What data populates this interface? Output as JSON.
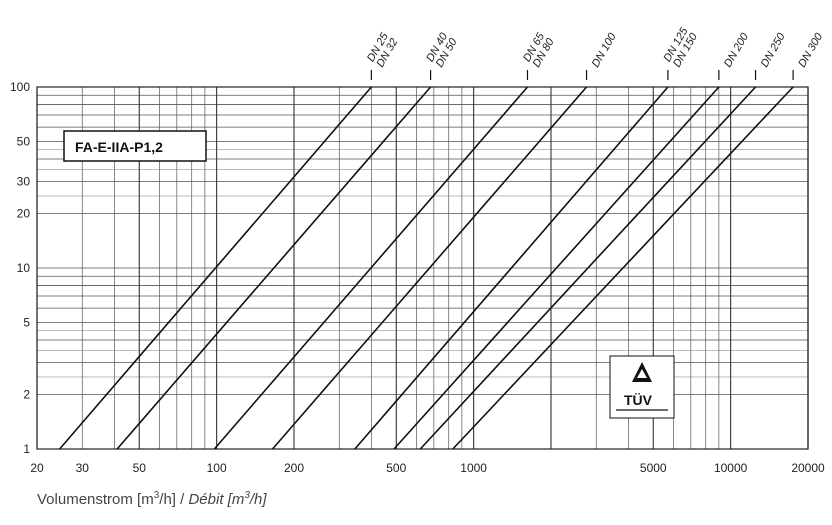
{
  "chart_data": {
    "type": "line",
    "xscale": "log",
    "yscale": "log",
    "xlim": [
      20,
      20000
    ],
    "ylim": [
      1,
      100
    ],
    "grid": true,
    "xticks": [
      "20",
      "30",
      "50",
      "100",
      "200",
      "500",
      "1000",
      "5000",
      "10000",
      "20000"
    ],
    "yticks": [
      "1",
      "2",
      "5",
      "10",
      "20",
      "30",
      "50",
      "100"
    ],
    "xlabel_parts": [
      "Volumenstrom [m",
      "3",
      "/h] /",
      "Débit [m",
      "3",
      "/h]"
    ],
    "device_label": "FA-E-IIA-P1,2",
    "certification": "TÜV",
    "series": [
      {
        "name": "DN 25 / DN 32",
        "x": [
          24.5,
          400
        ],
        "y": [
          1,
          100
        ]
      },
      {
        "name": "DN 40 / DN 50",
        "x": [
          41,
          680
        ],
        "y": [
          1,
          100
        ]
      },
      {
        "name": "DN 65 / DN 80",
        "x": [
          98,
          1620
        ],
        "y": [
          1,
          100
        ]
      },
      {
        "name": "DN 100",
        "x": [
          165,
          2750
        ],
        "y": [
          1,
          100
        ]
      },
      {
        "name": "DN 125 / DN 150",
        "x": [
          345,
          5700
        ],
        "y": [
          1,
          100
        ]
      },
      {
        "name": "DN 200",
        "x": [
          490,
          9000
        ],
        "y": [
          1,
          100
        ]
      },
      {
        "name": "DN 250",
        "x": [
          620,
          12500
        ],
        "y": [
          1,
          100
        ]
      },
      {
        "name": "DN 300",
        "x": [
          830,
          17500
        ],
        "y": [
          1,
          100
        ]
      }
    ],
    "dn_labels": [
      {
        "lines": [
          "DN 25",
          "DN 32"
        ],
        "x": 400
      },
      {
        "lines": [
          "DN 40",
          "DN 50"
        ],
        "x": 680
      },
      {
        "lines": [
          "DN 65",
          "DN 80"
        ],
        "x": 1620
      },
      {
        "lines": [
          "DN 100"
        ],
        "x": 2750
      },
      {
        "lines": [
          "DN 125",
          "DN 150"
        ],
        "x": 5700
      },
      {
        "lines": [
          "DN 200"
        ],
        "x": 9000
      },
      {
        "lines": [
          "DN 250"
        ],
        "x": 12500
      },
      {
        "lines": [
          "DN 300"
        ],
        "x": 17500
      }
    ]
  }
}
